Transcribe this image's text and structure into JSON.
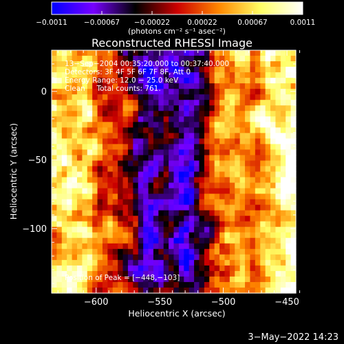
{
  "chart_data": {
    "type": "heatmap",
    "title": "Reconstructed RHESSI Image",
    "xlabel": "Heliocentric X (arcsec)",
    "ylabel": "Heliocentric Y (arcsec)",
    "xlim": [
      -635,
      -443
    ],
    "ylim": [
      -147,
      30
    ],
    "x_ticks": [
      -600,
      -550,
      -500,
      -450
    ],
    "y_ticks": [
      0,
      -50,
      -100
    ],
    "x_tick_labels": [
      "−600",
      "−550",
      "−500",
      "−450"
    ],
    "y_tick_labels": [
      "0",
      "−50",
      "−100"
    ],
    "colorbar": {
      "range": [
        -0.0011,
        0.0011
      ],
      "tick_labels": [
        "−0.0011",
        "−0.00067",
        "−0.00022",
        "0.00022",
        "0.00067",
        "0.0011"
      ],
      "units_label": "(photons cm⁻² s⁻¹ asec⁻²)",
      "colormap": [
        "#0000ff",
        "#7700ff",
        "#000000",
        "#cc0000",
        "#ff8800",
        "#ffff66",
        "#ffffff"
      ]
    },
    "annotations": [
      "13−Sep−2004 00:35:20.000 to 00:37:40.000",
      "Detectors: 3F 4F 5F 6F 7F 8F, Att 0",
      "Energy Range: 12.0 − 25.0 keV",
      "Clean     Total counts: 761."
    ],
    "peak_label": "Position of Peak = [−448,−103]",
    "peak": [
      -448,
      -103
    ],
    "grid_columns": 48,
    "grid_rows": 44,
    "value_profile_by_x": {
      "x": [
        -635,
        -610,
        -590,
        -575,
        -560,
        -545,
        -530,
        -515,
        -505,
        -490,
        -475,
        -460,
        -443
      ],
      "value": [
        0.0008,
        0.0007,
        0.0002,
        -0.0001,
        -0.0007,
        -0.0005,
        -0.0008,
        -0.0003,
        0.0002,
        0.0004,
        0.0005,
        0.0007,
        0.0009
      ]
    }
  },
  "footer": {
    "date": "3−May−2022 14:23"
  },
  "colors": {
    "background": "#000000",
    "text": "#ffffff",
    "axis": "#ffffff"
  }
}
